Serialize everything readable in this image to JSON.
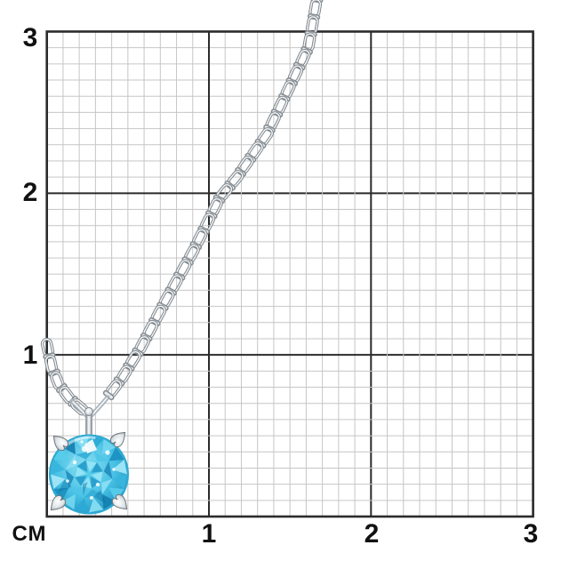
{
  "photo": {
    "subject": "silver-chain-pendant-with-round-blue-gemstone",
    "background": "#ffffff"
  },
  "axis": {
    "unit_label": "СМ",
    "left_ticks": [
      "3",
      "2",
      "1"
    ],
    "bottom_ticks": [
      "1",
      "2",
      "3"
    ]
  },
  "grid": {
    "cm_span": 3,
    "minor_divisions_per_cm": 10
  },
  "colors": {
    "grid_minor": "#c6c6c6",
    "grid_major": "#2b2b2b",
    "label": "#111111",
    "metal_light": "#f5f7f8",
    "metal_mid": "#c3c9ce",
    "metal_dark": "#7c848b",
    "stone_main": "#46c0e4",
    "stone_palette_outer": [
      "#2ba9d5",
      "#73d7f0",
      "#1b90c1",
      "#a5e7f7",
      "#38b5dd",
      "#57cdea",
      "#1580b1",
      "#8adef3"
    ],
    "stone_palette_mid": [
      "#4fc6e8",
      "#258fbf",
      "#8adef3",
      "#36afd8"
    ],
    "stone_table": "#58cdea",
    "stone_dark_accent": "#0d6f9f",
    "sparkle": "#ffffff"
  }
}
